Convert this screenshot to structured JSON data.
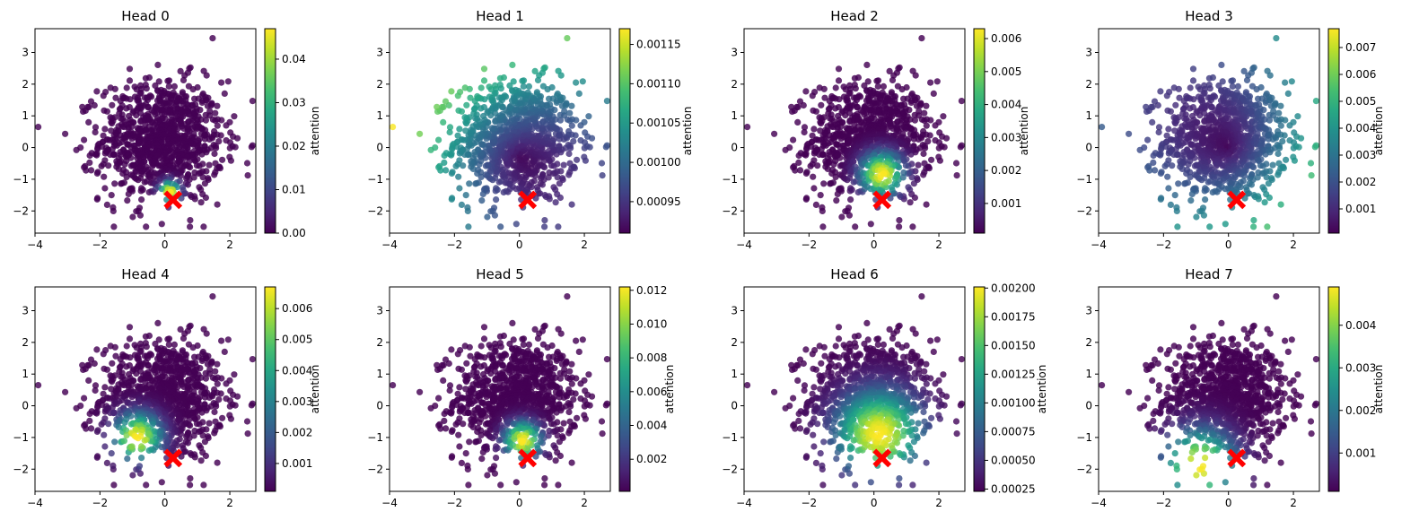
{
  "chart_data": {
    "type": "scatter",
    "colormap": "viridis",
    "point_count": 1000,
    "point_source": "2-D standard-normal cloud, colored by attention weight to the marked query point",
    "query_point": {
      "x": 0.25,
      "y": -1.65,
      "marker": "X",
      "color": "#ff0000"
    },
    "xlim": [
      -4,
      2.8
    ],
    "ylim": [
      -2.7,
      3.75
    ],
    "xticks": [
      "−4",
      "−2",
      "0",
      "2"
    ],
    "yticks": [
      "−2",
      "−1",
      "0",
      "1",
      "2",
      "3"
    ],
    "colorbar_label": "attention",
    "panels": [
      {
        "title": "Head 0",
        "cmin": 0.0,
        "cmax": 0.047,
        "cticks": [
          "0.00",
          "0.01",
          "0.02",
          "0.03",
          "0.04"
        ],
        "cvals": [
          0.0,
          0.01,
          0.02,
          0.03,
          0.04
        ],
        "focus": [
          0.15,
          -1.4
        ],
        "sigma": 0.22,
        "bias": [
          0,
          0
        ]
      },
      {
        "title": "Head 1",
        "cmin": 0.00091,
        "cmax": 0.00117,
        "cticks": [
          "0.00095",
          "0.00100",
          "0.00105",
          "0.00110",
          "0.00115"
        ],
        "cvals": [
          0.00095,
          0.001,
          0.00105,
          0.0011,
          0.00115
        ],
        "focus": [
          0.0,
          -0.3
        ],
        "sigma": 0,
        "bias": [
          -0.6,
          0.5
        ]
      },
      {
        "title": "Head 2",
        "cmin": 0.0001,
        "cmax": 0.0063,
        "cticks": [
          "0.001",
          "0.002",
          "0.003",
          "0.004",
          "0.005",
          "0.006"
        ],
        "cvals": [
          0.001,
          0.002,
          0.003,
          0.004,
          0.005,
          0.006
        ],
        "focus": [
          0.25,
          -0.85
        ],
        "sigma": 0.45,
        "bias": [
          0,
          0
        ]
      },
      {
        "title": "Head 3",
        "cmin": 0.0001,
        "cmax": 0.0077,
        "cticks": [
          "0.001",
          "0.002",
          "0.003",
          "0.004",
          "0.005",
          "0.006",
          "0.007"
        ],
        "cvals": [
          0.001,
          0.002,
          0.003,
          0.004,
          0.005,
          0.006,
          0.007
        ],
        "focus": [
          0,
          0
        ],
        "sigma": 0,
        "bias": [
          0.7,
          -0.6
        ]
      },
      {
        "title": "Head 4",
        "cmin": 0.0001,
        "cmax": 0.0067,
        "cticks": [
          "0.001",
          "0.002",
          "0.003",
          "0.004",
          "0.005",
          "0.006"
        ],
        "cvals": [
          0.001,
          0.002,
          0.003,
          0.004,
          0.005,
          0.006
        ],
        "focus": [
          -0.85,
          -1.0
        ],
        "sigma": 0.5,
        "bias": [
          0,
          0
        ]
      },
      {
        "title": "Head 5",
        "cmin": 0.0001,
        "cmax": 0.0122,
        "cticks": [
          "0.002",
          "0.004",
          "0.006",
          "0.008",
          "0.010",
          "0.012"
        ],
        "cvals": [
          0.002,
          0.004,
          0.006,
          0.008,
          0.01,
          0.012
        ],
        "focus": [
          0.1,
          -1.1
        ],
        "sigma": 0.38,
        "bias": [
          0,
          0
        ]
      },
      {
        "title": "Head 6",
        "cmin": 0.00023,
        "cmax": 0.00201,
        "cticks": [
          "0.00025",
          "0.00050",
          "0.00075",
          "0.00100",
          "0.00125",
          "0.00150",
          "0.00175",
          "0.00200"
        ],
        "cvals": [
          0.00025,
          0.0005,
          0.00075,
          0.001,
          0.00125,
          0.0015,
          0.00175,
          0.002
        ],
        "focus": [
          0.15,
          -0.9
        ],
        "sigma": 0.9,
        "bias": [
          0,
          0
        ]
      },
      {
        "title": "Head 7",
        "cmin": 0.0001,
        "cmax": 0.0049,
        "cticks": [
          "0.001",
          "0.002",
          "0.003",
          "0.004"
        ],
        "cvals": [
          0.001,
          0.002,
          0.003,
          0.004
        ],
        "focus": [
          -0.9,
          -1.9
        ],
        "sigma": 0.75,
        "bias": [
          0,
          0
        ]
      }
    ]
  }
}
